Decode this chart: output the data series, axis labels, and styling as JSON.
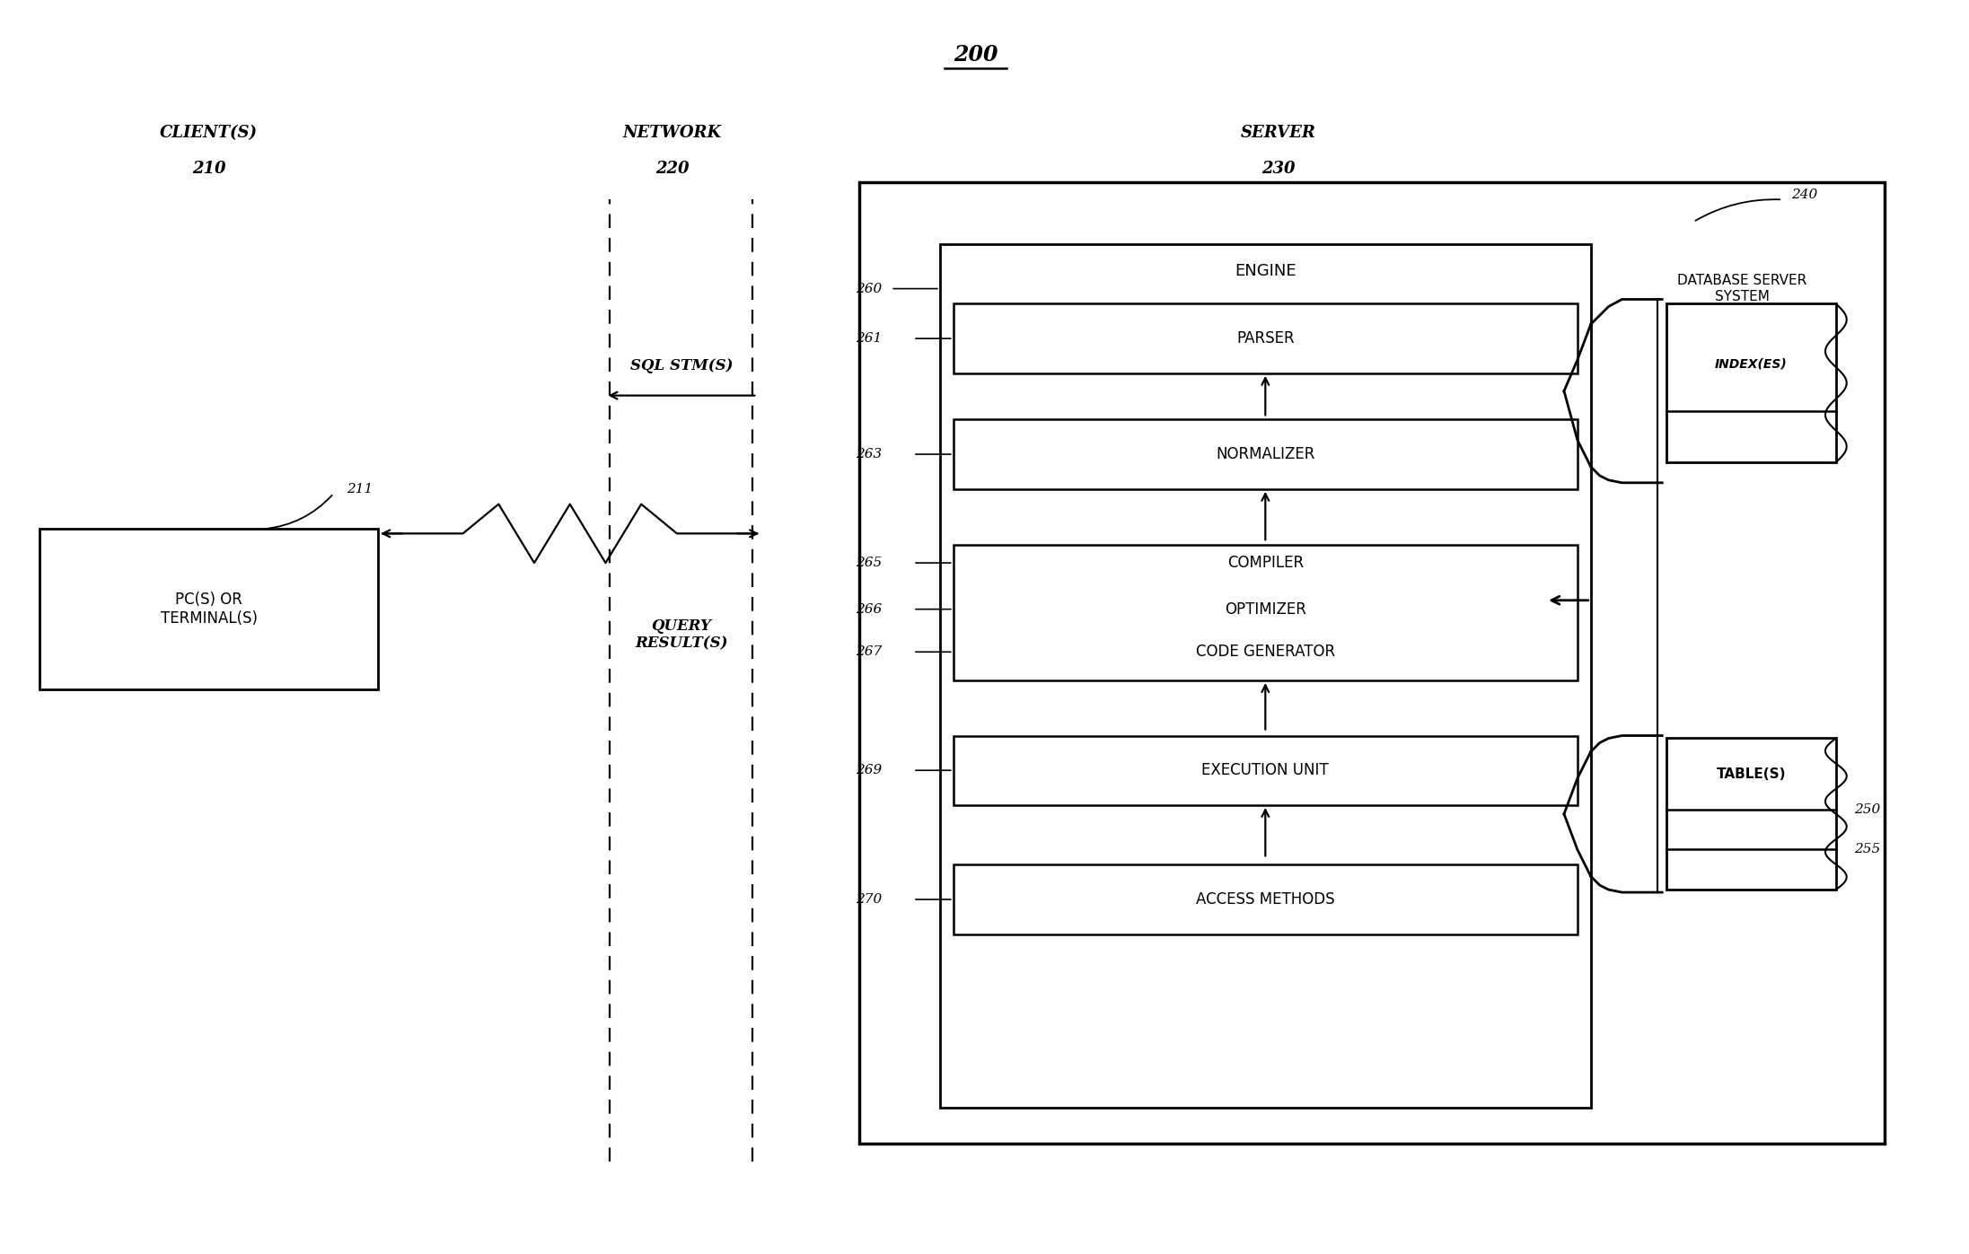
{
  "fig_title": "200",
  "bg_color": "#ffffff",
  "fig_width": 21.93,
  "fig_height": 13.97,
  "clients_title": "CLIENT(S)",
  "clients_num": "210",
  "network_title": "NETWORK",
  "network_num": "220",
  "server_title": "SERVER",
  "server_num": "230",
  "db_server_system": "DATABASE SERVER\nSYSTEM",
  "label_240": "240",
  "label_250": "250",
  "label_255": "255",
  "label_211": "211",
  "label_260": "260",
  "label_261": "261",
  "label_263": "263",
  "label_265": "265",
  "label_266": "266",
  "label_267": "267",
  "label_269": "269",
  "label_270": "270",
  "pc_terminal": "PC(S) OR\nTERMINAL(S)",
  "sql_stm": "SQL STM(S)",
  "query_result": "QUERY\nRESULT(S)",
  "engine": "ENGINE",
  "parser": "PARSER",
  "normalizer": "NORMALIZER",
  "compiler": "COMPILER",
  "optimizer": "OPTIMIZER",
  "code_generator": "CODE GENERATOR",
  "execution_unit": "EXECUTION UNIT",
  "access_methods": "ACCESS METHODS",
  "index_label": "INDEX(ES)",
  "table_label": "TABLE(S)"
}
